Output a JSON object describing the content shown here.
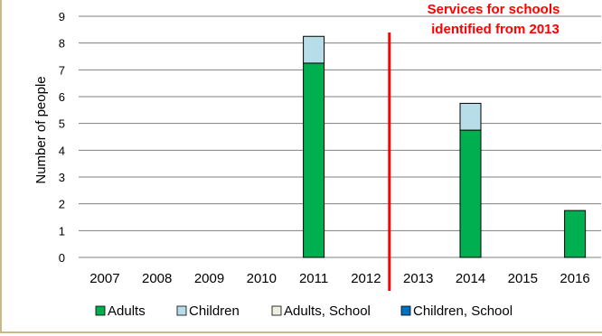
{
  "chart_data": {
    "type": "bar",
    "stacked": true,
    "categories": [
      "2007",
      "2008",
      "2009",
      "2010",
      "2011",
      "2012",
      "2013",
      "2014",
      "2015",
      "2016"
    ],
    "series": [
      {
        "name": "Adults",
        "color": "#00b050",
        "values": [
          0,
          0,
          0,
          0,
          7.25,
          0,
          0,
          4.75,
          0,
          1.75
        ]
      },
      {
        "name": "Children",
        "color": "#b7dee8",
        "values": [
          0,
          0,
          0,
          0,
          1.0,
          0,
          0,
          1.0,
          0,
          0
        ]
      },
      {
        "name": "Adults, School",
        "color": "#ebf1de",
        "values": [
          0,
          0,
          0,
          0,
          0,
          0,
          0,
          0,
          0,
          0
        ]
      },
      {
        "name": "Children, School",
        "color": "#0070c0",
        "values": [
          0,
          0,
          0,
          0,
          0,
          0,
          0,
          0,
          0,
          0
        ]
      }
    ],
    "ylabel": "Number of people",
    "ylim": [
      0,
      9
    ],
    "yticks": [
      0,
      1,
      2,
      3,
      4,
      5,
      6,
      7,
      8,
      9
    ],
    "grid": true,
    "legend_position": "bottom",
    "annotation": {
      "lines": [
        "Services for schools",
        "identified from 2013"
      ],
      "color": "#ff0000",
      "marker_between": [
        "2012",
        "2013"
      ]
    }
  }
}
